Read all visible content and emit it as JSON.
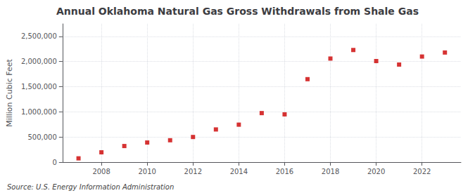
{
  "chart_data": {
    "type": "scatter",
    "title": "Annual Oklahoma Natural Gas Gross Withdrawals from Shale Gas",
    "ylabel": "Million Cubic Feet",
    "annotations": [
      "Source: U.S. Energy Information Administration"
    ],
    "x": [
      2007,
      2008,
      2009,
      2010,
      2011,
      2012,
      2013,
      2014,
      2015,
      2016,
      2017,
      2018,
      2019,
      2020,
      2021,
      2022,
      2023
    ],
    "values": [
      75000,
      195000,
      320000,
      390000,
      435000,
      500000,
      650000,
      745000,
      975000,
      950000,
      1650000,
      2060000,
      2230000,
      2010000,
      1940000,
      2100000,
      2180000
    ],
    "color": "#cc0000",
    "marker": "square",
    "xlim": [
      2006.3,
      2023.7
    ],
    "xticks": [
      2008,
      2010,
      2012,
      2014,
      2016,
      2018,
      2020,
      2022
    ],
    "ylim": [
      0,
      2750000
    ],
    "yticks": [
      0,
      {
        "value": 500000,
        "label": "500,000"
      },
      {
        "value": 1000000,
        "label": "1,000,000"
      },
      {
        "value": 1500000,
        "label": "1,500,000"
      },
      {
        "value": 2000000,
        "label": "2,000,000"
      },
      {
        "value": 2500000,
        "label": "2,500,000"
      }
    ],
    "grid": true
  }
}
